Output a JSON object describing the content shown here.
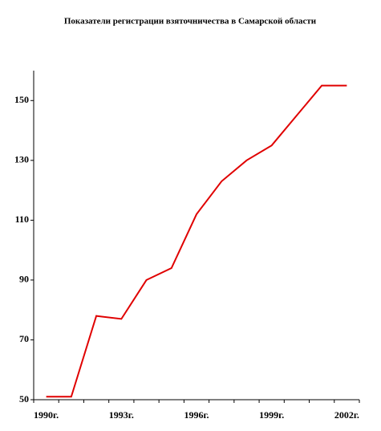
{
  "chart_data": {
    "type": "line",
    "title": "Показатели регистрации взяточничества в Самарской области",
    "categories": [
      "1990г.",
      null,
      null,
      "1993г.",
      null,
      null,
      "1996г.",
      null,
      null,
      "1999г.",
      null,
      null,
      "2002г."
    ],
    "values": [
      51,
      51,
      78,
      77,
      90,
      94,
      112,
      123,
      130,
      135,
      145,
      155,
      155
    ],
    "color": "#e00000",
    "ylim": [
      50,
      160
    ],
    "yticks": [
      50,
      70,
      90,
      110,
      130,
      150
    ],
    "grid": false
  }
}
